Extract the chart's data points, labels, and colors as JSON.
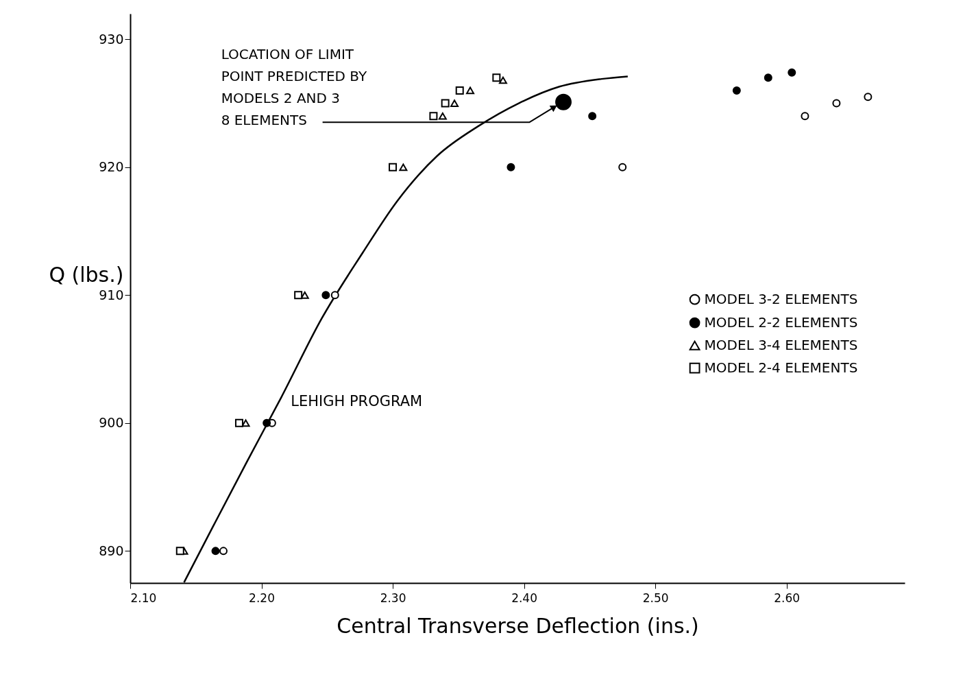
{
  "chart_data": {
    "type": "scatter",
    "xlabel": "Central Transverse Deflection (ins.)",
    "ylabel": "Q (lbs.)",
    "xlim": [
      2.1,
      2.69
    ],
    "ylim": [
      887.5,
      932
    ],
    "xticks": [
      {
        "value": 2.1,
        "label": "2.10"
      },
      {
        "value": 2.2,
        "label": "2.20"
      },
      {
        "value": 2.3,
        "label": "2.30"
      },
      {
        "value": 2.4,
        "label": "2.40"
      },
      {
        "value": 2.5,
        "label": "2.50"
      },
      {
        "value": 2.6,
        "label": "2.60"
      }
    ],
    "yticks": [
      890,
      900,
      910,
      920,
      930
    ],
    "grid": false,
    "legend": "right",
    "series": [
      {
        "name": "MODEL 3-2 ELEMENTS",
        "color": "#ffffff",
        "marker": "circle",
        "x": [
          2.171,
          2.208,
          2.256,
          2.475,
          2.614,
          2.638,
          2.662
        ],
        "values": [
          890,
          900,
          910,
          920,
          924,
          925,
          925.5
        ]
      },
      {
        "name": "MODEL 2-2 ELEMENTS",
        "color": "#000000",
        "marker": "circle",
        "x": [
          2.165,
          2.204,
          2.249,
          2.39,
          2.452,
          2.562,
          2.586,
          2.604
        ],
        "values": [
          890,
          900,
          910,
          920,
          924,
          926,
          927,
          927.4
        ]
      },
      {
        "name": "MODEL 3-4 ELEMENTS",
        "color": "#ffffff",
        "marker": "triangle",
        "x": [
          2.141,
          2.188,
          2.233,
          2.308,
          2.338,
          2.347,
          2.359,
          2.384
        ],
        "values": [
          890,
          900,
          910,
          920,
          924,
          925,
          926,
          926.8
        ]
      },
      {
        "name": "MODEL 2-4 ELEMENTS",
        "color": "#ffffff",
        "marker": "square",
        "x": [
          2.138,
          2.183,
          2.228,
          2.3,
          2.331,
          2.34,
          2.351,
          2.379
        ],
        "values": [
          890,
          900,
          910,
          920,
          924,
          925,
          926,
          927
        ]
      },
      {
        "color": "#000000",
        "marker": "circle",
        "x": [
          2.43
        ],
        "values": [
          925.1
        ]
      },
      {
        "name": "LEHIGH PROGRAM",
        "type": "line",
        "color": "#000000",
        "marker": "none",
        "line_style": "solid",
        "x": [
          2.141,
          2.163,
          2.189,
          2.215,
          2.246,
          2.277,
          2.303,
          2.334,
          2.365,
          2.396,
          2.427,
          2.459,
          2.479
        ],
        "values": [
          887.55,
          891.9,
          897.0,
          902.0,
          908.2,
          913.3,
          917.3,
          920.9,
          923.2,
          925.0,
          926.3,
          926.9,
          927.1
        ]
      }
    ],
    "annotations": [
      {
        "text": "LOCATION OF LIMIT\nPOINT PREDICTED BY\nMODELS 2 AND 3\n8 ELEMENTS",
        "x": 2.423,
        "y": 924.7
      }
    ]
  }
}
